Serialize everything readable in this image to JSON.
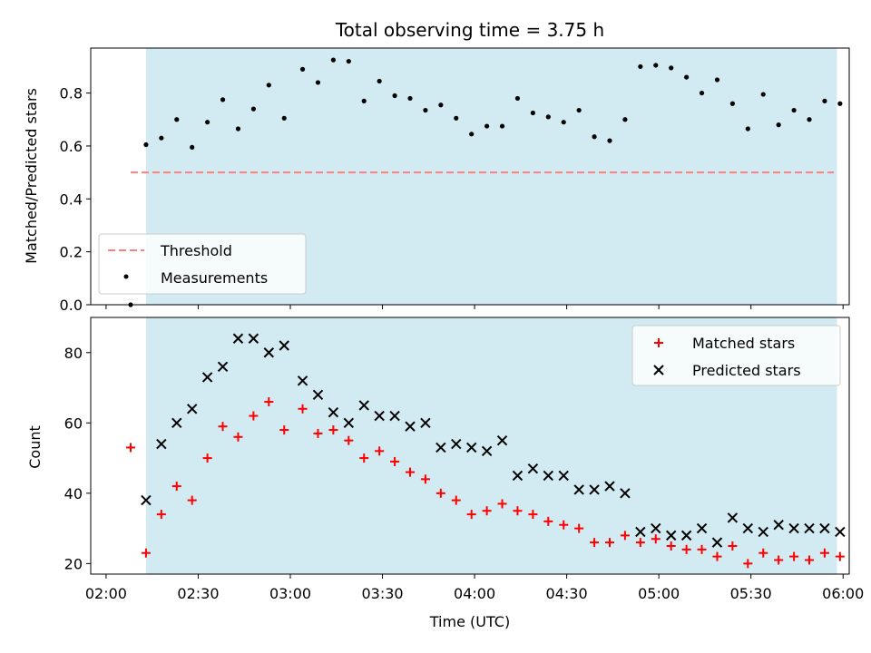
{
  "chart_data": [
    {
      "type": "scatter",
      "title": "Total observing time = 3.75 h",
      "xlabel": "",
      "ylabel": "Matched/Predicted stars",
      "ylim": [
        0,
        0.97
      ],
      "yticks": [
        "0.0",
        "0.2",
        "0.4",
        "0.6",
        "0.8"
      ],
      "shaded_span": [
        "02:13",
        "05:58"
      ],
      "shade_color": "#add8e6",
      "legend_placement": "lower-left",
      "threshold": {
        "name": "Threshold",
        "value": 0.5,
        "x_range": [
          "02:08",
          "05:57"
        ],
        "color": "#ff7f7f",
        "style": "dashed"
      },
      "series": [
        {
          "name": "Measurements",
          "color": "#000000",
          "marker": "dot",
          "points": [
            [
              "02:08",
              0.0
            ],
            [
              "02:13",
              0.605
            ],
            [
              "02:18",
              0.63
            ],
            [
              "02:23",
              0.7
            ],
            [
              "02:28",
              0.595
            ],
            [
              "02:33",
              0.69
            ],
            [
              "02:38",
              0.775
            ],
            [
              "02:43",
              0.665
            ],
            [
              "02:48",
              0.74
            ],
            [
              "02:53",
              0.83
            ],
            [
              "02:58",
              0.705
            ],
            [
              "03:04",
              0.89
            ],
            [
              "03:09",
              0.84
            ],
            [
              "03:14",
              0.925
            ],
            [
              "03:19",
              0.92
            ],
            [
              "03:24",
              0.77
            ],
            [
              "03:29",
              0.845
            ],
            [
              "03:34",
              0.79
            ],
            [
              "03:39",
              0.78
            ],
            [
              "03:44",
              0.735
            ],
            [
              "03:49",
              0.755
            ],
            [
              "03:54",
              0.705
            ],
            [
              "03:59",
              0.645
            ],
            [
              "04:04",
              0.675
            ],
            [
              "04:09",
              0.675
            ],
            [
              "04:14",
              0.78
            ],
            [
              "04:19",
              0.725
            ],
            [
              "04:24",
              0.71
            ],
            [
              "04:29",
              0.69
            ],
            [
              "04:34",
              0.735
            ],
            [
              "04:39",
              0.635
            ],
            [
              "04:44",
              0.62
            ],
            [
              "04:49",
              0.7
            ],
            [
              "04:54",
              0.9
            ],
            [
              "04:59",
              0.905
            ],
            [
              "05:04",
              0.895
            ],
            [
              "05:09",
              0.86
            ],
            [
              "05:14",
              0.8
            ],
            [
              "05:19",
              0.85
            ],
            [
              "05:24",
              0.76
            ],
            [
              "05:29",
              0.665
            ],
            [
              "05:34",
              0.795
            ],
            [
              "05:39",
              0.68
            ],
            [
              "05:44",
              0.735
            ],
            [
              "05:49",
              0.7
            ],
            [
              "05:54",
              0.77
            ],
            [
              "05:59",
              0.76
            ]
          ]
        }
      ]
    },
    {
      "type": "scatter",
      "title": "",
      "xlabel": "Time (UTC)",
      "ylabel": "Count",
      "ylim": [
        17,
        90
      ],
      "yticks": [
        "20",
        "40",
        "60",
        "80"
      ],
      "xticks": [
        "02:00",
        "02:30",
        "03:00",
        "03:30",
        "04:00",
        "04:30",
        "05:00",
        "05:30",
        "06:00"
      ],
      "shaded_span": [
        "02:13",
        "05:58"
      ],
      "shade_color": "#add8e6",
      "legend_placement": "upper-right",
      "series": [
        {
          "name": "Matched stars",
          "color": "#ff0000",
          "marker": "plus",
          "points": [
            [
              "02:08",
              53
            ],
            [
              "02:13",
              23
            ],
            [
              "02:18",
              34
            ],
            [
              "02:23",
              42
            ],
            [
              "02:28",
              38
            ],
            [
              "02:33",
              50
            ],
            [
              "02:38",
              59
            ],
            [
              "02:43",
              56
            ],
            [
              "02:48",
              62
            ],
            [
              "02:53",
              66
            ],
            [
              "02:58",
              58
            ],
            [
              "03:04",
              64
            ],
            [
              "03:09",
              57
            ],
            [
              "03:14",
              58
            ],
            [
              "03:19",
              55
            ],
            [
              "03:24",
              50
            ],
            [
              "03:29",
              52
            ],
            [
              "03:34",
              49
            ],
            [
              "03:39",
              46
            ],
            [
              "03:44",
              44
            ],
            [
              "03:49",
              40
            ],
            [
              "03:54",
              38
            ],
            [
              "03:59",
              34
            ],
            [
              "04:04",
              35
            ],
            [
              "04:09",
              37
            ],
            [
              "04:14",
              35
            ],
            [
              "04:19",
              34
            ],
            [
              "04:24",
              32
            ],
            [
              "04:29",
              31
            ],
            [
              "04:34",
              30
            ],
            [
              "04:39",
              26
            ],
            [
              "04:44",
              26
            ],
            [
              "04:49",
              28
            ],
            [
              "04:54",
              26
            ],
            [
              "04:59",
              27
            ],
            [
              "05:04",
              25
            ],
            [
              "05:09",
              24
            ],
            [
              "05:14",
              24
            ],
            [
              "05:19",
              22
            ],
            [
              "05:24",
              25
            ],
            [
              "05:29",
              20
            ],
            [
              "05:34",
              23
            ],
            [
              "05:39",
              21
            ],
            [
              "05:44",
              22
            ],
            [
              "05:49",
              21
            ],
            [
              "05:54",
              23
            ],
            [
              "05:59",
              22
            ]
          ]
        },
        {
          "name": "Predicted stars",
          "color": "#000000",
          "marker": "x",
          "points": [
            [
              "02:13",
              38
            ],
            [
              "02:18",
              54
            ],
            [
              "02:23",
              60
            ],
            [
              "02:28",
              64
            ],
            [
              "02:33",
              73
            ],
            [
              "02:38",
              76
            ],
            [
              "02:43",
              84
            ],
            [
              "02:48",
              84
            ],
            [
              "02:53",
              80
            ],
            [
              "02:58",
              82
            ],
            [
              "03:04",
              72
            ],
            [
              "03:09",
              68
            ],
            [
              "03:14",
              63
            ],
            [
              "03:19",
              60
            ],
            [
              "03:24",
              65
            ],
            [
              "03:29",
              62
            ],
            [
              "03:34",
              62
            ],
            [
              "03:39",
              59
            ],
            [
              "03:44",
              60
            ],
            [
              "03:49",
              53
            ],
            [
              "03:54",
              54
            ],
            [
              "03:59",
              53
            ],
            [
              "04:04",
              52
            ],
            [
              "04:09",
              55
            ],
            [
              "04:14",
              45
            ],
            [
              "04:19",
              47
            ],
            [
              "04:24",
              45
            ],
            [
              "04:29",
              45
            ],
            [
              "04:34",
              41
            ],
            [
              "04:39",
              41
            ],
            [
              "04:44",
              42
            ],
            [
              "04:49",
              40
            ],
            [
              "04:54",
              29
            ],
            [
              "04:59",
              30
            ],
            [
              "05:04",
              28
            ],
            [
              "05:09",
              28
            ],
            [
              "05:14",
              30
            ],
            [
              "05:19",
              26
            ],
            [
              "05:24",
              33
            ],
            [
              "05:29",
              30
            ],
            [
              "05:34",
              29
            ],
            [
              "05:39",
              31
            ],
            [
              "05:44",
              30
            ],
            [
              "05:49",
              30
            ],
            [
              "05:54",
              30
            ],
            [
              "05:59",
              29
            ]
          ]
        }
      ]
    }
  ]
}
